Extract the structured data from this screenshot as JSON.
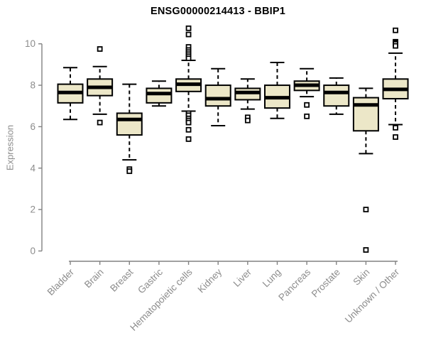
{
  "page": {
    "background": "#ffffff"
  },
  "chart_data": {
    "type": "boxplot",
    "title": "ENSG00000214413 - BBIP1",
    "ylabel": "Expression",
    "xlabel": "",
    "ylim": [
      0,
      10
    ],
    "yticks": [
      0,
      2,
      4,
      6,
      8,
      10
    ],
    "grid": false,
    "legend": "none",
    "categories": [
      "Bladder",
      "Brain",
      "Breast",
      "Gastric",
      "Hematopoietic cells",
      "Kidney",
      "Liver",
      "Lung",
      "Pancreas",
      "Prostate",
      "Skin",
      "Unknown / Other"
    ],
    "series": [
      {
        "category": "Bladder",
        "whisker_low": 6.35,
        "q1": 7.15,
        "median": 7.65,
        "q3": 8.05,
        "whisker_high": 8.85,
        "outliers": []
      },
      {
        "category": "Brain",
        "whisker_low": 6.6,
        "q1": 7.5,
        "median": 7.9,
        "q3": 8.3,
        "whisker_high": 8.9,
        "outliers": [
          9.75,
          6.2
        ]
      },
      {
        "category": "Breast",
        "whisker_low": 4.4,
        "q1": 5.6,
        "median": 6.35,
        "q3": 6.65,
        "whisker_high": 8.05,
        "outliers": [
          3.95,
          3.85
        ]
      },
      {
        "category": "Gastric",
        "whisker_low": 7.0,
        "q1": 7.15,
        "median": 7.6,
        "q3": 7.85,
        "whisker_high": 8.2,
        "outliers": []
      },
      {
        "category": "Hematopoietic cells",
        "whisker_low": 6.75,
        "q1": 7.7,
        "median": 8.05,
        "q3": 8.3,
        "whisker_high": 9.2,
        "outliers": [
          10.75,
          10.45,
          9.85,
          9.7,
          9.6,
          9.5,
          9.4,
          9.3,
          6.65,
          6.55,
          6.4,
          6.3,
          6.2,
          5.85,
          5.4
        ]
      },
      {
        "category": "Kidney",
        "whisker_low": 6.05,
        "q1": 7.0,
        "median": 7.35,
        "q3": 8.0,
        "whisker_high": 8.8,
        "outliers": []
      },
      {
        "category": "Liver",
        "whisker_low": 6.85,
        "q1": 7.3,
        "median": 7.65,
        "q3": 7.85,
        "whisker_high": 8.3,
        "outliers": [
          6.45,
          6.3
        ]
      },
      {
        "category": "Lung",
        "whisker_low": 6.4,
        "q1": 6.9,
        "median": 7.4,
        "q3": 8.0,
        "whisker_high": 9.1,
        "outliers": []
      },
      {
        "category": "Pancreas",
        "whisker_low": 7.45,
        "q1": 7.75,
        "median": 8.0,
        "q3": 8.2,
        "whisker_high": 8.8,
        "outliers": [
          7.05,
          6.5
        ]
      },
      {
        "category": "Prostate",
        "whisker_low": 6.6,
        "q1": 7.0,
        "median": 7.65,
        "q3": 8.0,
        "whisker_high": 8.35,
        "outliers": []
      },
      {
        "category": "Skin",
        "whisker_low": 4.7,
        "q1": 5.8,
        "median": 7.05,
        "q3": 7.4,
        "whisker_high": 7.85,
        "outliers": [
          2.0,
          0.05
        ]
      },
      {
        "category": "Unknown / Other",
        "whisker_low": 6.1,
        "q1": 7.35,
        "median": 7.8,
        "q3": 8.3,
        "whisker_high": 9.55,
        "outliers": [
          10.65,
          10.1,
          10.05,
          10.0,
          9.9,
          5.95,
          5.5
        ]
      }
    ],
    "colors": {
      "box_fill": "#ece7c8",
      "box_stroke": "#000000",
      "median": "#000000",
      "axis": "#828282",
      "tick_label": "#8c8c8c",
      "title": "#000000",
      "outlier_fill": "#ffffff"
    }
  }
}
